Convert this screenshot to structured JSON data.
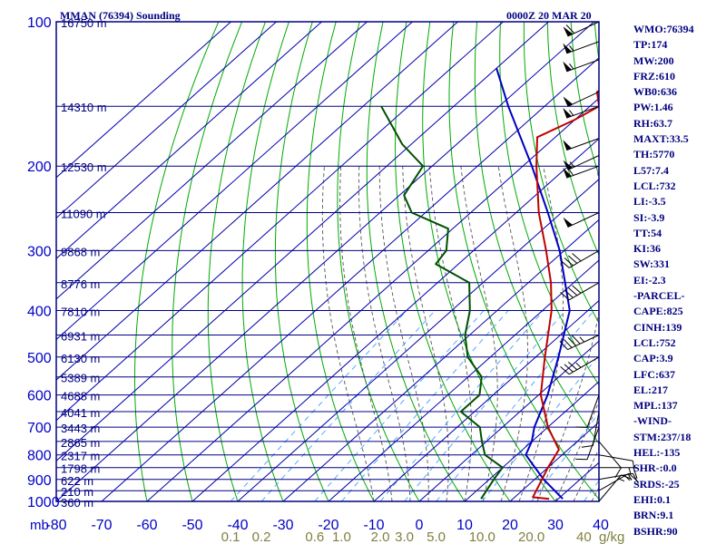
{
  "header": {
    "station": "MMAN (76394) Sounding",
    "time": "0000Z 20 MAR 20"
  },
  "indices": [
    "WMO:76394",
    "TP:174",
    "MW:200",
    "FRZ:610",
    "WB0:636",
    "PW:1.46",
    "RH:63.7",
    "MAXT:33.5",
    "TH:5770",
    "L57:7.4",
    "LCL:732",
    "LI:-3.5",
    "SI:-3.9",
    "TT:54",
    "KI:36",
    "SW:331",
    "EI:-2.3",
    "-PARCEL-",
    "CAPE:825",
    "CINH:139",
    "LCL:752",
    "CAP:3.9",
    "LFC:637",
    "EL:217",
    "MPL:137",
    "-WIND-",
    "STM:237/18",
    "HEL:-135",
    "SHR-:0.0",
    "SRDS:-25",
    "EHI:0.1",
    "BRN:9.1",
    "BSHR:90"
  ],
  "colors": {
    "frame": "#000080",
    "isotherm": "#0000b0",
    "isobar": "#000080",
    "dry_adiabat": "#00aa00",
    "moist_adiabat": "#555555",
    "mixing_ratio": "#40a0ff",
    "temperature": "#c00000",
    "dewpoint": "#005000",
    "parcel": "#0000c0",
    "axis_text": "#0000c8",
    "height_text": "#000080",
    "mixing_text": "#808040",
    "wind": "#000000"
  },
  "chart_data": {
    "type": "skew-t log-p",
    "y_label": "mb",
    "x_unit": "C",
    "mixing_ratio_unit": "g/kg",
    "pressure_range_mb": [
      100,
      1000
    ],
    "temperature_range_c": [
      -80,
      40
    ],
    "pressure_ticks": [
      100,
      200,
      300,
      400,
      500,
      600,
      700,
      800,
      900,
      1000
    ],
    "isobar_levels_mb": [
      100,
      150,
      200,
      250,
      300,
      350,
      400,
      450,
      500,
      550,
      600,
      650,
      700,
      750,
      800,
      850,
      900,
      950,
      1000
    ],
    "temperature_ticks": [
      -80,
      -70,
      -60,
      -50,
      -40,
      -30,
      -20,
      -10,
      0,
      10,
      20,
      30,
      40
    ],
    "temperature_tick_labels": [
      "-80",
      "-70",
      "-60",
      "-50",
      "-40",
      "-30",
      "-20",
      "-10",
      "0",
      "10",
      "20",
      "30",
      "40"
    ],
    "mixing_ratio_values": [
      0.1,
      0.2,
      0.6,
      1.0,
      2.0,
      3.0,
      5.0,
      10.0,
      20.0,
      40.0
    ],
    "mixing_ratio_labels": [
      "0.1",
      "0.2",
      "0.6",
      "1.0",
      "2.0",
      "3.0",
      "5.0",
      "10.0",
      "20.0",
      "40"
    ],
    "height_labels": [
      {
        "p": 100,
        "label": "16750 m"
      },
      {
        "p": 150,
        "label": "14310 m"
      },
      {
        "p": 200,
        "label": "12530 m"
      },
      {
        "p": 250,
        "label": "11090 m"
      },
      {
        "p": 300,
        "label": "9868 m"
      },
      {
        "p": 350,
        "label": "8776 m"
      },
      {
        "p": 400,
        "label": "7810 m"
      },
      {
        "p": 450,
        "label": "6931 m"
      },
      {
        "p": 500,
        "label": "6130 m"
      },
      {
        "p": 550,
        "label": "5389 m"
      },
      {
        "p": 600,
        "label": "4688 m"
      },
      {
        "p": 650,
        "label": "4041 m"
      },
      {
        "p": 700,
        "label": "3443 m"
      },
      {
        "p": 750,
        "label": "2865 m"
      },
      {
        "p": 800,
        "label": "2317 m"
      },
      {
        "p": 850,
        "label": "1798 m"
      },
      {
        "p": 900,
        "label": "622 m"
      },
      {
        "p": 950,
        "label": "210 m"
      },
      {
        "p": 1000,
        "label": "360 m"
      }
    ],
    "temperature_profile": [
      {
        "p": 988,
        "t": 28.0
      },
      {
        "p": 980,
        "t": 24.0
      },
      {
        "p": 850,
        "t": 20.0
      },
      {
        "p": 780,
        "t": 18.0
      },
      {
        "p": 700,
        "t": 10.0
      },
      {
        "p": 600,
        "t": 0.5
      },
      {
        "p": 500,
        "t": -8.0
      },
      {
        "p": 400,
        "t": -18.0
      },
      {
        "p": 350,
        "t": -25.0
      },
      {
        "p": 300,
        "t": -34.0
      },
      {
        "p": 250,
        "t": -45.0
      },
      {
        "p": 200,
        "t": -57.0
      },
      {
        "p": 174,
        "t": -64.0
      },
      {
        "p": 160,
        "t": -60.0
      },
      {
        "p": 150,
        "t": -58.0
      },
      {
        "p": 140,
        "t": -62.0
      },
      {
        "p": 130,
        "t": -59.0
      },
      {
        "p": 100,
        "t": -72.0
      }
    ],
    "dewpoint_profile": [
      {
        "p": 988,
        "t": 13.0
      },
      {
        "p": 900,
        "t": 11.0
      },
      {
        "p": 850,
        "t": 10.0
      },
      {
        "p": 800,
        "t": 3.0
      },
      {
        "p": 750,
        "t": -1.0
      },
      {
        "p": 700,
        "t": -5.0
      },
      {
        "p": 650,
        "t": -13.0
      },
      {
        "p": 600,
        "t": -13.0
      },
      {
        "p": 550,
        "t": -17.0
      },
      {
        "p": 500,
        "t": -25.0
      },
      {
        "p": 450,
        "t": -31.0
      },
      {
        "p": 400,
        "t": -36.0
      },
      {
        "p": 350,
        "t": -43.0
      },
      {
        "p": 320,
        "t": -55.0
      },
      {
        "p": 300,
        "t": -56.0
      },
      {
        "p": 270,
        "t": -61.0
      },
      {
        "p": 250,
        "t": -73.0
      },
      {
        "p": 230,
        "t": -79.0
      },
      {
        "p": 200,
        "t": -82.0
      },
      {
        "p": 180,
        "t": -92.0
      },
      {
        "p": 150,
        "t": -106.0
      }
    ],
    "parcel_profile": [
      {
        "p": 988,
        "t": 31.0
      },
      {
        "p": 900,
        "t": 22.0
      },
      {
        "p": 800,
        "t": 12.0
      },
      {
        "p": 750,
        "t": 10.0
      },
      {
        "p": 700,
        "t": 7.0
      },
      {
        "p": 600,
        "t": 2.0
      },
      {
        "p": 500,
        "t": -5.0
      },
      {
        "p": 400,
        "t": -14.0
      },
      {
        "p": 300,
        "t": -31.0
      },
      {
        "p": 250,
        "t": -43.0
      },
      {
        "p": 200,
        "t": -58.0
      },
      {
        "p": 150,
        "t": -78.0
      },
      {
        "p": 125,
        "t": -90.0
      }
    ],
    "winds": [
      {
        "p": 100,
        "dir": 245,
        "speed": 60
      },
      {
        "p": 110,
        "dir": 250,
        "speed": 55
      },
      {
        "p": 120,
        "dir": 250,
        "speed": 55
      },
      {
        "p": 140,
        "dir": 245,
        "speed": 50
      },
      {
        "p": 150,
        "dir": 250,
        "speed": 55
      },
      {
        "p": 175,
        "dir": 250,
        "speed": 50
      },
      {
        "p": 190,
        "dir": 245,
        "speed": 55
      },
      {
        "p": 200,
        "dir": 250,
        "speed": 55
      },
      {
        "p": 250,
        "dir": 245,
        "speed": 50
      },
      {
        "p": 300,
        "dir": 240,
        "speed": 40
      },
      {
        "p": 350,
        "dir": 240,
        "speed": 40
      },
      {
        "p": 450,
        "dir": 245,
        "speed": 45
      },
      {
        "p": 500,
        "dir": 240,
        "speed": 35
      },
      {
        "p": 600,
        "dir": 200,
        "speed": 10
      },
      {
        "p": 650,
        "dir": 190,
        "speed": 10
      },
      {
        "p": 700,
        "dir": 200,
        "speed": 10
      },
      {
        "p": 750,
        "dir": 140,
        "speed": 10
      },
      {
        "p": 800,
        "dir": 100,
        "speed": 10
      },
      {
        "p": 850,
        "dir": 90,
        "speed": 15
      },
      {
        "p": 900,
        "dir": 80,
        "speed": 15
      },
      {
        "p": 950,
        "dir": 60,
        "speed": 15
      },
      {
        "p": 1000,
        "dir": 40,
        "speed": 15
      }
    ]
  }
}
